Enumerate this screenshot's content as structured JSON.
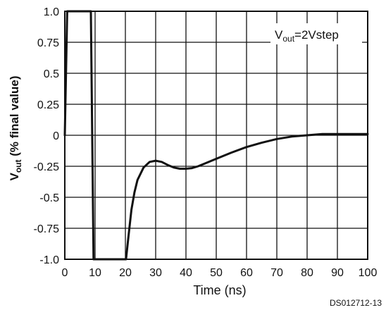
{
  "chart_data": {
    "type": "line",
    "xlabel": "Time (ns)",
    "ylabel_main": "V",
    "ylabel_sub": "out",
    "ylabel_rest": " (% final value)",
    "annotation_main": "V",
    "annotation_sub": "out",
    "annotation_rest": "=2Vstep",
    "code": "DS012712-13",
    "xlim": [
      0,
      100
    ],
    "ylim": [
      -1.0,
      1.0
    ],
    "x_ticks": [
      0,
      10,
      20,
      30,
      40,
      50,
      60,
      70,
      80,
      90,
      100
    ],
    "y_ticks": [
      1.0,
      0.75,
      0.5,
      0.25,
      0,
      -0.25,
      -0.5,
      -0.75,
      -1.0
    ],
    "x_tick_labels": [
      "0",
      "10",
      "20",
      "30",
      "40",
      "50",
      "60",
      "70",
      "80",
      "90",
      "100"
    ],
    "y_tick_labels": [
      "1.0",
      "0.75",
      "0.5",
      "0.25",
      "0",
      "-0.25",
      "-0.5",
      "-0.75",
      "-1.0"
    ],
    "grid": true,
    "series": [
      {
        "x": [
          0,
          0.8,
          1.2,
          8.2,
          8.6,
          9.5,
          9.9,
          19.8,
          20.2,
          21,
          22,
          23,
          24,
          26,
          28,
          30,
          32,
          34,
          36,
          38,
          40,
          42,
          44,
          46,
          50,
          55,
          60,
          65,
          70,
          75,
          80,
          85,
          90,
          95,
          100
        ],
        "y": [
          0,
          1.0,
          1.0,
          1.0,
          1.0,
          -1.0,
          -1.0,
          -1.0,
          -1.0,
          -0.82,
          -0.6,
          -0.46,
          -0.36,
          -0.26,
          -0.215,
          -0.205,
          -0.215,
          -0.24,
          -0.26,
          -0.27,
          -0.27,
          -0.265,
          -0.25,
          -0.23,
          -0.19,
          -0.14,
          -0.095,
          -0.06,
          -0.03,
          -0.01,
          0.0,
          0.01,
          0.01,
          0.01,
          0.01
        ]
      }
    ]
  }
}
